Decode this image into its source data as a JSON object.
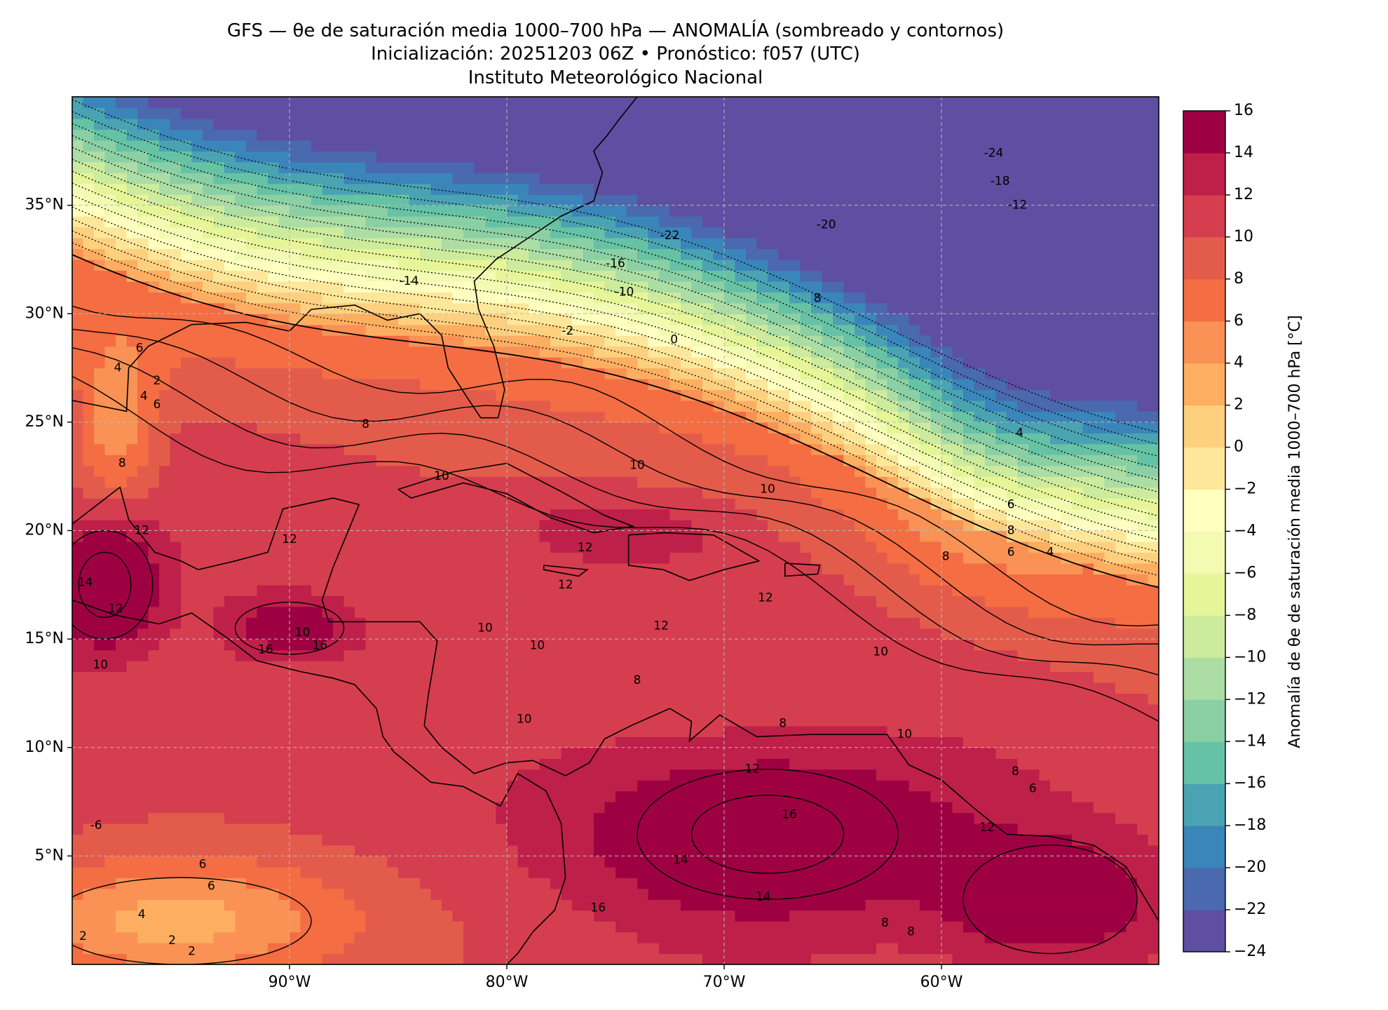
{
  "header": {
    "line1": "GFS — θe de saturación media 1000–700 hPa — ANOMALÍA (sombreado y contornos)",
    "line2": "Inicialización: 20251203 06Z   •   Pronóstico: f057 (UTC)",
    "line3": "Instituto Meteorológico Nacional"
  },
  "map": {
    "lon_range": [
      -100,
      -50
    ],
    "lat_range": [
      0,
      40
    ],
    "x_ticks": [
      {
        "lon": -90,
        "label": "90°W"
      },
      {
        "lon": -80,
        "label": "80°W"
      },
      {
        "lon": -70,
        "label": "70°W"
      },
      {
        "lon": -60,
        "label": "60°W"
      }
    ],
    "y_ticks": [
      {
        "lat": 35,
        "label": "35°N"
      },
      {
        "lat": 30,
        "label": "30°N"
      },
      {
        "lat": 25,
        "label": "25°N"
      },
      {
        "lat": 20,
        "label": "20°N"
      },
      {
        "lat": 15,
        "label": "15°N"
      },
      {
        "lat": 10,
        "label": "10°N"
      },
      {
        "lat": 5,
        "label": "5°N"
      }
    ],
    "gridlines": true,
    "contour_labels": [
      {
        "value": "-24",
        "lon": -57.6,
        "lat": 37.4
      },
      {
        "value": "-18",
        "lon": -57.3,
        "lat": 36.1
      },
      {
        "value": "-12",
        "lon": -56.5,
        "lat": 35.0
      },
      {
        "value": "-22",
        "lon": -72.5,
        "lat": 33.6
      },
      {
        "value": "-20",
        "lon": -65.3,
        "lat": 34.1
      },
      {
        "value": "-16",
        "lon": -75.0,
        "lat": 32.3
      },
      {
        "value": "-14",
        "lon": -84.5,
        "lat": 31.5
      },
      {
        "value": "-10",
        "lon": -74.6,
        "lat": 31.0
      },
      {
        "value": "8",
        "lon": -65.7,
        "lat": 30.7
      },
      {
        "value": "-2",
        "lon": -77.2,
        "lat": 29.2
      },
      {
        "value": "0",
        "lon": -72.3,
        "lat": 28.8
      },
      {
        "value": "6",
        "lon": -96.9,
        "lat": 28.4
      },
      {
        "value": "4",
        "lon": -97.9,
        "lat": 27.5
      },
      {
        "value": "2",
        "lon": -96.1,
        "lat": 26.9
      },
      {
        "value": "4",
        "lon": -96.7,
        "lat": 26.2
      },
      {
        "value": "6",
        "lon": -96.1,
        "lat": 25.8
      },
      {
        "value": "8",
        "lon": -86.5,
        "lat": 24.9
      },
      {
        "value": "8",
        "lon": -97.7,
        "lat": 23.1
      },
      {
        "value": "10",
        "lon": -83.0,
        "lat": 22.5
      },
      {
        "value": "10",
        "lon": -74.0,
        "lat": 23.0
      },
      {
        "value": "10",
        "lon": -68.0,
        "lat": 21.9
      },
      {
        "value": "12",
        "lon": -96.8,
        "lat": 20.0
      },
      {
        "value": "12",
        "lon": -90.0,
        "lat": 19.6
      },
      {
        "value": "12",
        "lon": -76.4,
        "lat": 19.2
      },
      {
        "value": "12",
        "lon": -77.3,
        "lat": 17.5
      },
      {
        "value": "12",
        "lon": -68.1,
        "lat": 16.9
      },
      {
        "value": "12",
        "lon": -72.9,
        "lat": 15.6
      },
      {
        "value": "14",
        "lon": -99.4,
        "lat": 17.6
      },
      {
        "value": "12",
        "lon": -98.0,
        "lat": 16.4
      },
      {
        "value": "16",
        "lon": -88.6,
        "lat": 14.7
      },
      {
        "value": "16",
        "lon": -91.1,
        "lat": 14.5
      },
      {
        "value": "10",
        "lon": -98.7,
        "lat": 13.8
      },
      {
        "value": "10",
        "lon": -89.4,
        "lat": 15.3
      },
      {
        "value": "10",
        "lon": -81.0,
        "lat": 15.5
      },
      {
        "value": "10",
        "lon": -78.6,
        "lat": 14.7
      },
      {
        "value": "10",
        "lon": -62.8,
        "lat": 14.4
      },
      {
        "value": "10",
        "lon": -79.2,
        "lat": 11.3
      },
      {
        "value": "10",
        "lon": -61.7,
        "lat": 10.6
      },
      {
        "value": "8",
        "lon": -74.0,
        "lat": 13.1
      },
      {
        "value": "8",
        "lon": -67.3,
        "lat": 11.1
      },
      {
        "value": "8",
        "lon": -56.6,
        "lat": 8.9
      },
      {
        "value": "6",
        "lon": -55.8,
        "lat": 8.1
      },
      {
        "value": "12",
        "lon": -68.7,
        "lat": 9.0
      },
      {
        "value": "12",
        "lon": -57.9,
        "lat": 6.3
      },
      {
        "value": "16",
        "lon": -67.0,
        "lat": 6.9
      },
      {
        "value": "16",
        "lon": -75.8,
        "lat": 2.6
      },
      {
        "value": "14",
        "lon": -72.0,
        "lat": 4.8
      },
      {
        "value": "14",
        "lon": -68.2,
        "lat": 3.1
      },
      {
        "value": "-6",
        "lon": -98.9,
        "lat": 6.4
      },
      {
        "value": "6",
        "lon": -94.0,
        "lat": 4.6
      },
      {
        "value": "6",
        "lon": -93.6,
        "lat": 3.6
      },
      {
        "value": "4",
        "lon": -96.8,
        "lat": 2.3
      },
      {
        "value": "2",
        "lon": -99.5,
        "lat": 1.3
      },
      {
        "value": "2",
        "lon": -95.4,
        "lat": 1.1
      },
      {
        "value": "2",
        "lon": -94.5,
        "lat": 0.6
      },
      {
        "value": "8",
        "lon": -62.6,
        "lat": 1.9
      },
      {
        "value": "8",
        "lon": -61.4,
        "lat": 1.5
      },
      {
        "value": "4",
        "lon": -56.4,
        "lat": 24.5
      },
      {
        "value": "6",
        "lon": -56.8,
        "lat": 21.2
      },
      {
        "value": "8",
        "lon": -56.8,
        "lat": 20.0
      },
      {
        "value": "6",
        "lon": -56.8,
        "lat": 19.0
      },
      {
        "value": "4",
        "lon": -55.0,
        "lat": 19.0
      },
      {
        "value": "8",
        "lon": -59.8,
        "lat": 18.8
      }
    ]
  },
  "colorbar": {
    "label": "Anomalía de θe de saturación media 1000–700 hPa [°C]",
    "levels": [
      -24,
      -22,
      -20,
      -18,
      -16,
      -14,
      -12,
      -10,
      -8,
      -6,
      -4,
      -2,
      0,
      2,
      4,
      6,
      8,
      10,
      12,
      14,
      16
    ],
    "tick_labels": [
      "−24",
      "−22",
      "−20",
      "−18",
      "−16",
      "−14",
      "−12",
      "−10",
      "−8",
      "−6",
      "−4",
      "−2",
      "0",
      "2",
      "4",
      "6",
      "8",
      "10",
      "12",
      "14",
      "16"
    ],
    "colors": [
      "#5e4fa2",
      "#4a69ae",
      "#3a85b9",
      "#4aa3b2",
      "#66c2a5",
      "#8ad0a4",
      "#abdda4",
      "#cceb9d",
      "#e6f598",
      "#f3fab2",
      "#ffffbf",
      "#fee79a",
      "#fdd07f",
      "#fdae61",
      "#f99254",
      "#f46d43",
      "#e35c4b",
      "#d53e4f",
      "#be2049",
      "#9e0142"
    ]
  }
}
